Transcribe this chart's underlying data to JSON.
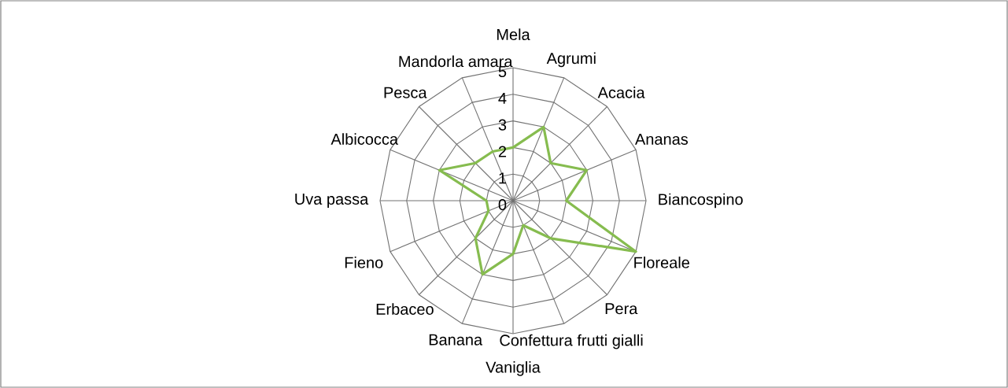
{
  "chart_data": {
    "type": "radar",
    "categories": [
      "Mela",
      "Agrumi",
      "Acacia",
      "Ananas",
      "Biancospino",
      "Floreale",
      "Pera",
      "Confettura frutti gialli",
      "Vaniglia",
      "Banana",
      "Erbaceo",
      "Fieno",
      "Uva passa",
      "Albicocca",
      "Pesca",
      "Mandorla amara"
    ],
    "series": [
      {
        "color": "#86bc4f",
        "values": [
          2,
          3,
          2,
          3,
          2,
          5,
          2,
          1,
          2,
          3,
          2,
          1,
          1,
          3,
          2,
          2
        ]
      }
    ],
    "ylim": [
      0,
      5
    ],
    "yticks": [
      0,
      1,
      2,
      3,
      4,
      5
    ],
    "grid": true
  }
}
